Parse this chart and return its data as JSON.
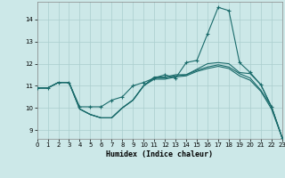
{
  "xlabel": "Humidex (Indice chaleur)",
  "bg_color": "#cce8e8",
  "line_color": "#1a6b6b",
  "grid_color": "#aacece",
  "x_ticks": [
    0,
    1,
    2,
    3,
    4,
    5,
    6,
    7,
    8,
    9,
    10,
    11,
    12,
    13,
    14,
    15,
    16,
    17,
    18,
    19,
    20,
    21,
    22,
    23
  ],
  "y_ticks": [
    9,
    10,
    11,
    12,
    13,
    14
  ],
  "xlim": [
    0,
    23
  ],
  "ylim": [
    8.6,
    14.8
  ],
  "series": [
    {
      "x": [
        0,
        1,
        2,
        3,
        4,
        5,
        6,
        7,
        8,
        9,
        10,
        11,
        12,
        13,
        14,
        15,
        16,
        17,
        18,
        19,
        20,
        21,
        22,
        23
      ],
      "y": [
        10.9,
        10.9,
        11.15,
        11.15,
        10.05,
        10.05,
        10.05,
        10.35,
        10.5,
        11.0,
        11.15,
        11.35,
        11.5,
        11.35,
        12.05,
        12.15,
        13.35,
        14.55,
        14.4,
        12.05,
        11.6,
        11.05,
        10.05,
        8.65
      ],
      "markers": true
    },
    {
      "x": [
        0,
        1,
        2,
        3,
        4,
        5,
        6,
        7,
        8,
        9,
        10,
        11,
        12,
        13,
        14,
        15,
        16,
        17,
        18,
        19,
        20,
        21,
        22,
        23
      ],
      "y": [
        10.9,
        10.9,
        11.15,
        11.15,
        9.95,
        9.7,
        9.55,
        9.55,
        10.0,
        10.35,
        11.0,
        11.4,
        11.4,
        11.5,
        11.5,
        11.75,
        12.0,
        12.05,
        12.0,
        11.6,
        11.55,
        11.05,
        10.05,
        8.65
      ],
      "markers": false
    },
    {
      "x": [
        0,
        1,
        2,
        3,
        4,
        5,
        6,
        7,
        8,
        9,
        10,
        11,
        12,
        13,
        14,
        15,
        16,
        17,
        18,
        19,
        20,
        21,
        22,
        23
      ],
      "y": [
        10.9,
        10.9,
        11.15,
        11.15,
        9.95,
        9.7,
        9.55,
        9.55,
        10.0,
        10.35,
        11.0,
        11.35,
        11.35,
        11.45,
        11.5,
        11.7,
        11.85,
        11.95,
        11.85,
        11.55,
        11.35,
        10.8,
        10.05,
        8.65
      ],
      "markers": false
    },
    {
      "x": [
        0,
        1,
        2,
        3,
        4,
        5,
        6,
        7,
        8,
        9,
        10,
        11,
        12,
        13,
        14,
        15,
        16,
        17,
        18,
        19,
        20,
        21,
        22,
        23
      ],
      "y": [
        10.9,
        10.9,
        11.15,
        11.15,
        9.95,
        9.7,
        9.55,
        9.55,
        10.0,
        10.35,
        11.0,
        11.3,
        11.3,
        11.4,
        11.45,
        11.65,
        11.78,
        11.88,
        11.78,
        11.45,
        11.25,
        10.75,
        9.95,
        8.65
      ],
      "markers": false
    }
  ]
}
